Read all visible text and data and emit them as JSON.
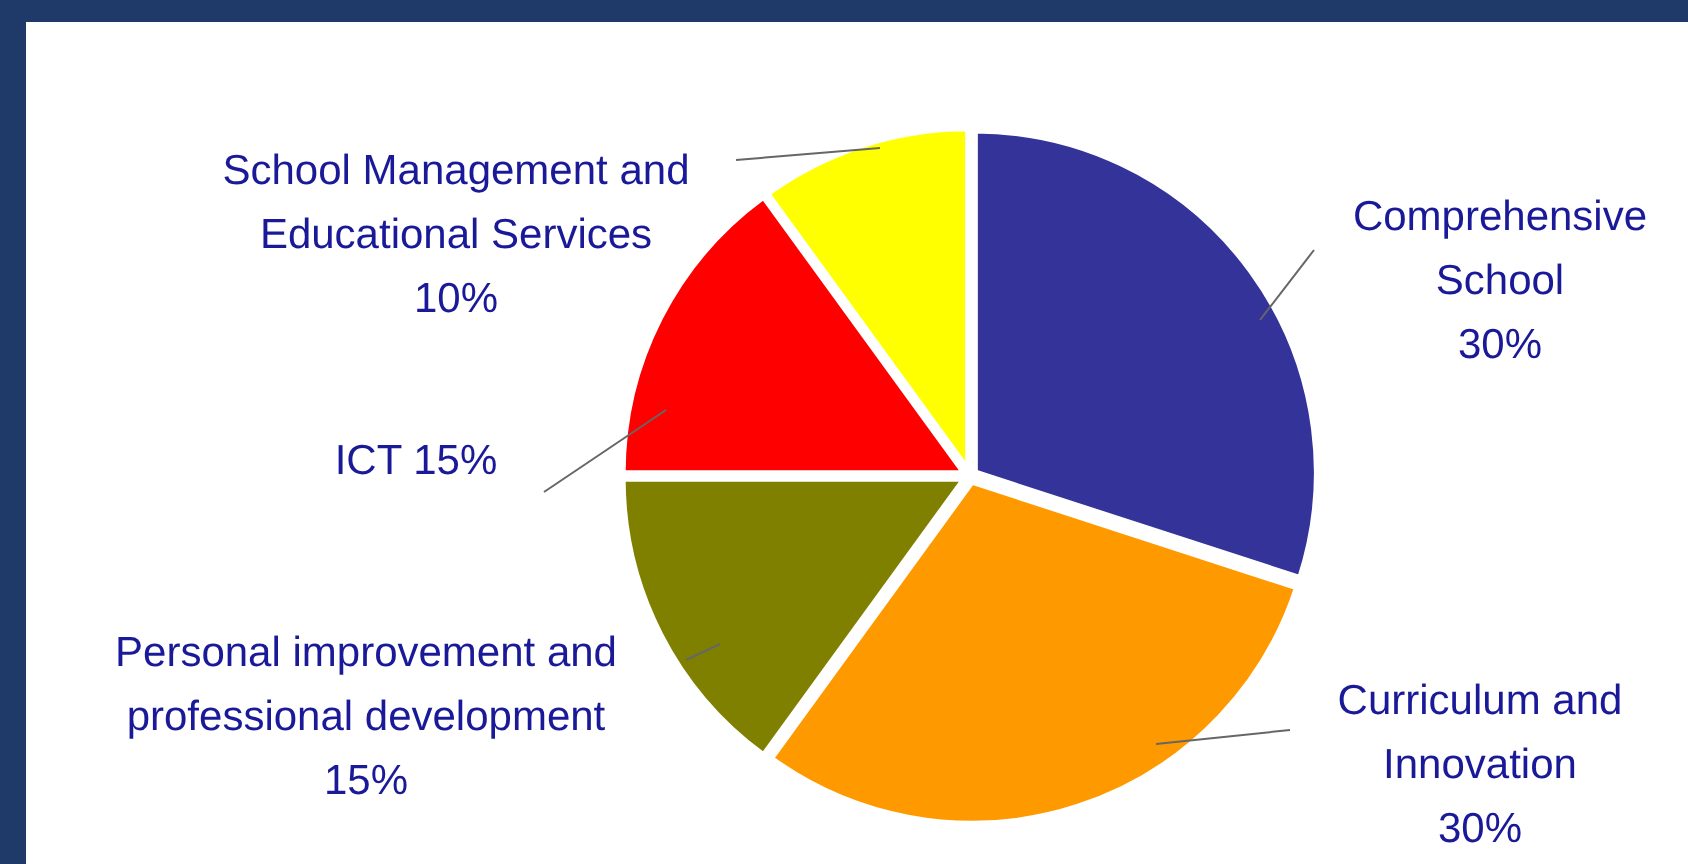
{
  "chart_data": {
    "type": "pie",
    "categories": [
      "Comprehensive School",
      "Curriculum and Innovation",
      "Personal improvement and professional development",
      "ICT",
      "School Management and Educational Services"
    ],
    "values": [
      30,
      30,
      15,
      15,
      10
    ],
    "value_labels": [
      "30%",
      "30%",
      "15%",
      "15%",
      "10%"
    ],
    "colors": [
      "#333399",
      "#ff9900",
      "#808000",
      "#ff0000",
      "#ffff00"
    ]
  }
}
